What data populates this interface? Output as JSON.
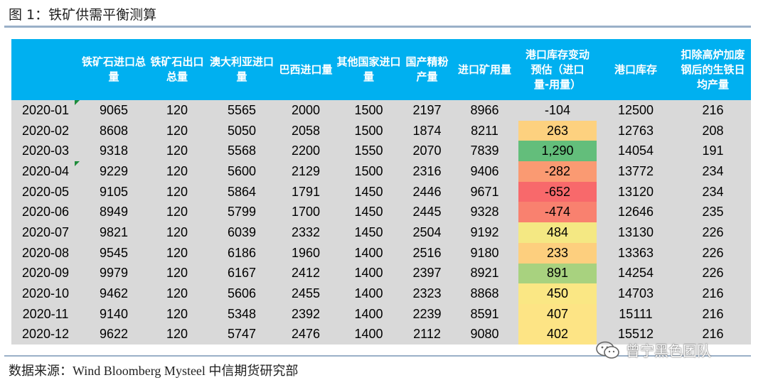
{
  "figure_title": "图 1：铁矿供需平衡测算",
  "source_note": "数据来源：Wind Bloomberg Mysteel 中信期货研究部",
  "watermark_text": "曾宁黑色团队",
  "colors": {
    "header_bg": "#00b0f0",
    "cell_bg": "#d9d9d9",
    "rule": "#9ab0c8",
    "flag": "#1e8c3a"
  },
  "table": {
    "headers": [
      "",
      "铁矿石进口总量",
      "铁矿石出口总量",
      "澳大利亚进口量",
      "巴西进口量",
      "其他国家进口量",
      "国产精粉产量",
      "进口矿用量",
      "港口库存变动预估（进口量-用量）",
      "港口库存",
      "扣除高炉加废钢后的生铁日均产量"
    ],
    "rows": [
      {
        "date": "2020-01",
        "flag": true,
        "values": [
          "9065",
          "120",
          "5565",
          "2000",
          "1500",
          "2197",
          "8966",
          "-104",
          "12500",
          "216"
        ],
        "heat_color": "#d9d9d9"
      },
      {
        "date": "2020-02",
        "flag": false,
        "values": [
          "8608",
          "120",
          "5050",
          "2058",
          "1500",
          "1874",
          "8211",
          "263",
          "12763",
          "208"
        ],
        "heat_color": "#fdd17f"
      },
      {
        "date": "2020-03",
        "flag": false,
        "values": [
          "9318",
          "120",
          "5568",
          "2200",
          "1550",
          "2070",
          "7839",
          "1,290",
          "14054",
          "191"
        ],
        "heat_color": "#63be7b"
      },
      {
        "date": "2020-04",
        "flag": true,
        "values": [
          "9229",
          "120",
          "5600",
          "2129",
          "1500",
          "2316",
          "9406",
          "-282",
          "13772",
          "234"
        ],
        "heat_color": "#fa9a72"
      },
      {
        "date": "2020-05",
        "flag": false,
        "values": [
          "9105",
          "120",
          "5864",
          "1791",
          "1450",
          "2446",
          "9671",
          "-652",
          "13120",
          "234"
        ],
        "heat_color": "#f8696b"
      },
      {
        "date": "2020-06",
        "flag": false,
        "values": [
          "8949",
          "120",
          "5799",
          "1700",
          "1450",
          "2445",
          "9328",
          "-474",
          "12646",
          "235"
        ],
        "heat_color": "#f9816f"
      },
      {
        "date": "2020-07",
        "flag": false,
        "values": [
          "9821",
          "120",
          "6039",
          "2332",
          "1450",
          "2504",
          "9192",
          "484",
          "13130",
          "226"
        ],
        "heat_color": "#f4e883"
      },
      {
        "date": "2020-08",
        "flag": false,
        "values": [
          "9545",
          "120",
          "6186",
          "1960",
          "1400",
          "2516",
          "9180",
          "233",
          "13363",
          "226"
        ],
        "heat_color": "#fdcf7e"
      },
      {
        "date": "2020-09",
        "flag": false,
        "values": [
          "9979",
          "120",
          "6167",
          "2412",
          "1400",
          "2397",
          "8921",
          "891",
          "14254",
          "226"
        ],
        "heat_color": "#a8d27f"
      },
      {
        "date": "2020-10",
        "flag": false,
        "values": [
          "9462",
          "120",
          "5606",
          "2455",
          "1400",
          "2323",
          "8868",
          "450",
          "14703",
          "216"
        ],
        "heat_color": "#fae784"
      },
      {
        "date": "2020-11",
        "flag": false,
        "values": [
          "9140",
          "120",
          "5348",
          "2392",
          "1400",
          "2239",
          "8591",
          "407",
          "15111",
          "216"
        ],
        "heat_color": "#fde485"
      },
      {
        "date": "2020-12",
        "flag": false,
        "values": [
          "9622",
          "120",
          "5747",
          "2476",
          "1400",
          "2112",
          "9080",
          "402",
          "15512",
          "216"
        ],
        "heat_color": "#fde485"
      }
    ]
  }
}
